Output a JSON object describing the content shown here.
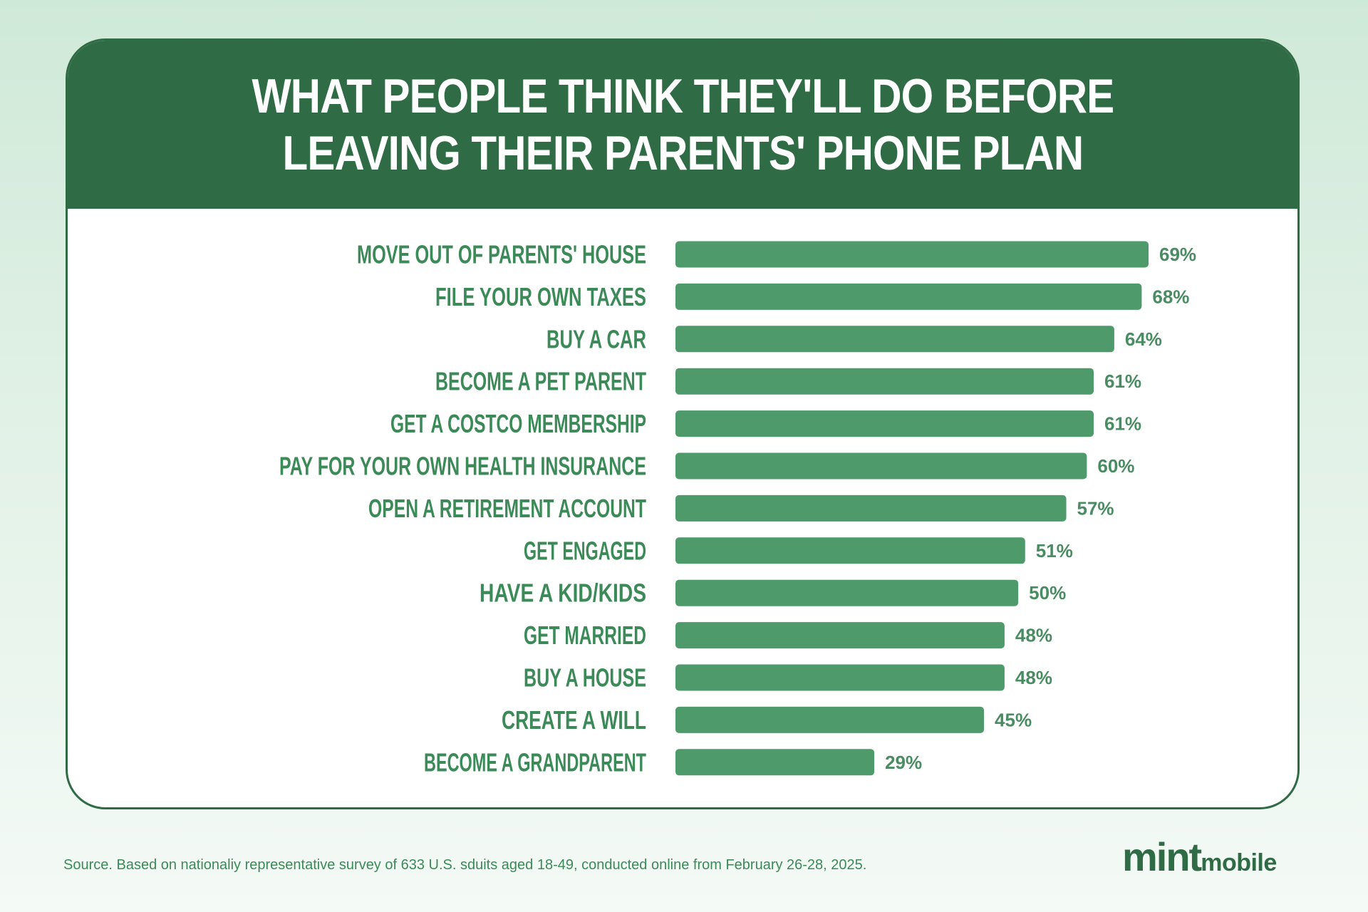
{
  "title_lines": [
    "WHAT PEOPLE THINK THEY'LL DO BEFORE",
    "LEAVING THEIR PARENTS' PHONE PLAN"
  ],
  "colors": {
    "header": "#2f6b44",
    "bar": "#4e9a6b",
    "label": "#3b8a58",
    "value_label": "#4a8c62",
    "border": "#2f6b44"
  },
  "chart_data": {
    "type": "bar",
    "orientation": "horizontal",
    "title": "WHAT PEOPLE THINK THEY'LL DO BEFORE LEAVING THEIR PARENTS' PHONE PLAN",
    "categories": [
      "MOVE OUT OF PARENTS' HOUSE",
      "FILE YOUR OWN TAXES",
      "BUY A CAR",
      "BECOME A PET PARENT",
      "GET A COSTCO MEMBERSHIP",
      "PAY FOR YOUR OWN HEALTH INSURANCE",
      "OPEN A RETIREMENT ACCOUNT",
      "GET ENGAGED",
      "HAVE A KID/KIDS",
      "GET MARRIED",
      "BUY A HOUSE",
      "CREATE A WILL",
      "BECOME A GRANDPARENT"
    ],
    "values": [
      69,
      68,
      64,
      61,
      61,
      60,
      57,
      51,
      50,
      48,
      48,
      45,
      29
    ],
    "value_labels": [
      "69%",
      "68%",
      "64%",
      "61%",
      "61%",
      "60%",
      "57%",
      "51%",
      "50%",
      "48%",
      "48%",
      "45%",
      "29%"
    ],
    "unit": "%",
    "grid": false,
    "legend": "none"
  },
  "footer": {
    "source": "Source. Based on nationaliy representative survey of 633 U.S. sduits aged 18-49, conducted online from February 26-28, 2025.",
    "logo_mint": "mint",
    "logo_mobile": "mobile"
  }
}
